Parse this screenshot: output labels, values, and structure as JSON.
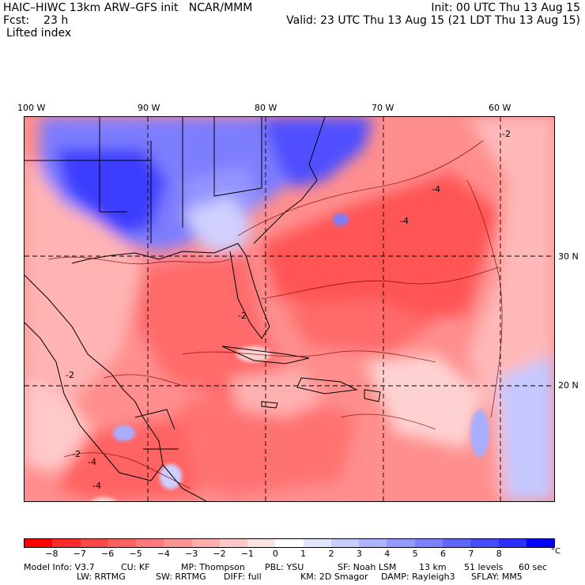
{
  "header": {
    "title_left": "HAIC–HIWC 13km ARW–GFS init   NCAR/MMM",
    "fcst_label": "Fcst:    23 h",
    "variable": "Lifted index",
    "init": "Init: 00 UTC Thu 13 Aug 15",
    "valid": "Valid: 23 UTC Thu 13 Aug 15 (21 LDT Thu 13 Aug 15)"
  },
  "axes": {
    "lon_labels": [
      "100 W",
      "90 W",
      "80 W",
      "70 W",
      "60 W"
    ],
    "lat_labels": [
      "30 N",
      "20 N"
    ]
  },
  "colorbar": {
    "ticks": [
      "−8",
      "−7",
      "−6",
      "−5",
      "−4",
      "−3",
      "−2",
      "−1",
      "0",
      "1",
      "2",
      "3",
      "4",
      "5",
      "6",
      "7",
      "8"
    ],
    "unit": "°C",
    "colors": [
      "#ff0000",
      "#ff2b2b",
      "#ff4747",
      "#ff6161",
      "#ff7a7a",
      "#ff9494",
      "#ffadad",
      "#ffc7c7",
      "#ffe3e3",
      "#ffffff",
      "#e3e6ff",
      "#c7ccff",
      "#adb3ff",
      "#9499ff",
      "#7a80ff",
      "#6166ff",
      "#474dff",
      "#2b30ff",
      "#0000ff"
    ]
  },
  "map_annotations": {
    "contour_labels": [
      "-4",
      "-4",
      "-2",
      "-2",
      "-4",
      "-2",
      "-2",
      "-4"
    ]
  },
  "model_info": {
    "line1": [
      "Model Info: V3.7",
      "CU: KF",
      "MP: Thompson",
      "PBL: YSU",
      "SF: Noah LSM",
      "13 km",
      "51 levels",
      "60 sec"
    ],
    "line2": [
      "LW: RRTMG",
      "SW: RRTMG",
      "DIFF: full",
      "KM: 2D Smagor",
      "DAMP: Rayleigh3",
      "SFLAY: MM5"
    ]
  }
}
